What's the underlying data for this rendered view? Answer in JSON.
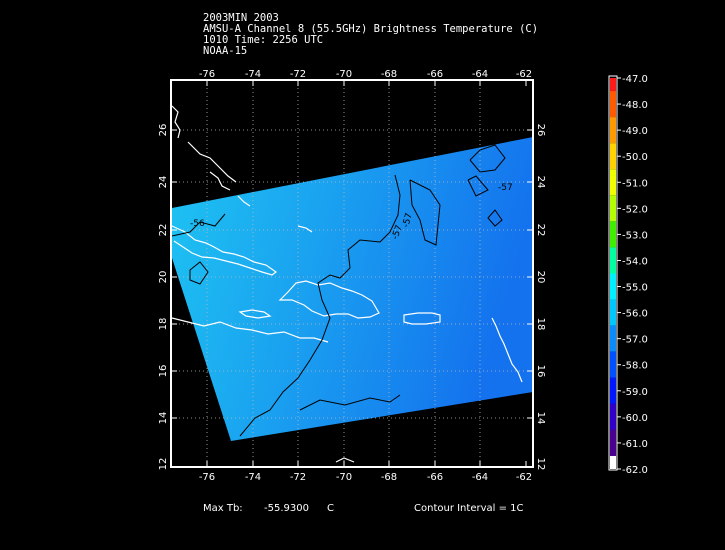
{
  "header": {
    "line1": "2003MIN 2003",
    "line2": "AMSU-A Channel 8 (55.5GHz) Brightness Temperature (C)",
    "line3": "1010 Time: 2256 UTC",
    "line4": "NOAA-15"
  },
  "map": {
    "lon_labels": [
      "-76",
      "-74",
      "-72",
      "-70",
      "-68",
      "-66",
      "-64",
      "-62"
    ],
    "lat_labels": [
      "12",
      "14",
      "16",
      "18",
      "20",
      "22",
      "24",
      "26"
    ],
    "contour_labels": [
      "-56",
      "-57",
      "-57",
      "-57"
    ],
    "colors": {
      "background": "#000000",
      "swath_west": "#1ec4f2",
      "swath_east": "#1472ee",
      "coastline": "#ffffff",
      "contour": "#000000"
    }
  },
  "colorbar": {
    "labels": [
      "-47.0",
      "-48.0",
      "-49.0",
      "-50.0",
      "-51.0",
      "-52.0",
      "-53.0",
      "-54.0",
      "-55.0",
      "-56.0",
      "-57.0",
      "-58.0",
      "-59.0",
      "-60.0",
      "-61.0",
      "-62.0"
    ],
    "colors": [
      "#ff1a1a",
      "#ff5a00",
      "#ff9900",
      "#ffd200",
      "#f0ff00",
      "#b4ff00",
      "#40ee00",
      "#00ffa0",
      "#00f0ff",
      "#00c8ff",
      "#0a8cff",
      "#0050ff",
      "#0018ff",
      "#3000c8",
      "#4a0090",
      "#ffffff"
    ]
  },
  "footer": {
    "max_label": "Max Tb:",
    "max_value": "-55.9300",
    "max_unit": "C",
    "contour_interval": "Contour Interval = 1C"
  }
}
